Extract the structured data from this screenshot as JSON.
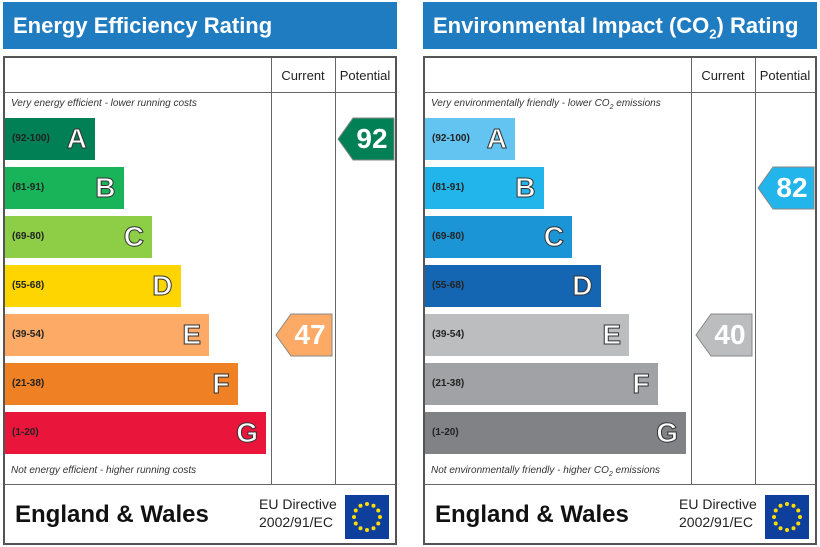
{
  "chart_data": [
    {
      "type": "bar",
      "title": "Energy Efficiency Rating",
      "columns": [
        "Current",
        "Potential"
      ],
      "top_note": "Very energy efficient - lower running costs",
      "bottom_note": "Not energy efficient - higher running costs",
      "categories": [
        "A",
        "B",
        "C",
        "D",
        "E",
        "F",
        "G"
      ],
      "ranges": [
        "(92-100)",
        "(81-91)",
        "(69-80)",
        "(55-68)",
        "(39-54)",
        "(21-38)",
        "(1-20)"
      ],
      "colors": [
        "#008054",
        "#19b459",
        "#8dce46",
        "#ffd500",
        "#fcaa65",
        "#ef8023",
        "#e9153b"
      ],
      "current": 47,
      "potential": 92,
      "current_color": "#fcaa65",
      "potential_color": "#008054",
      "region": "England & Wales",
      "directive": [
        "EU Directive",
        "2002/91/EC"
      ]
    },
    {
      "type": "bar",
      "title": "Environmental Impact (CO",
      "title_sub": "2",
      "title_end": ") Rating",
      "columns": [
        "Current",
        "Potential"
      ],
      "top_note": "Very environmentally friendly - lower CO",
      "top_note_sub": "2",
      "top_note_end": " emissions",
      "bottom_note": "Not environmentally friendly - higher CO",
      "bottom_note_sub": "2",
      "bottom_note_end": " emissions",
      "categories": [
        "A",
        "B",
        "C",
        "D",
        "E",
        "F",
        "G"
      ],
      "ranges": [
        "(92-100)",
        "(81-91)",
        "(69-80)",
        "(55-68)",
        "(39-54)",
        "(21-38)",
        "(1-20)"
      ],
      "colors": [
        "#63c3f1",
        "#22b5eb",
        "#1b95d6",
        "#1566b2",
        "#bbbdbf",
        "#a0a2a5",
        "#808285"
      ],
      "current": 40,
      "potential": 82,
      "current_color": "#bbbdbf",
      "potential_color": "#22b5eb",
      "region": "England & Wales",
      "directive": [
        "EU Directive",
        "2002/91/EC"
      ]
    }
  ]
}
